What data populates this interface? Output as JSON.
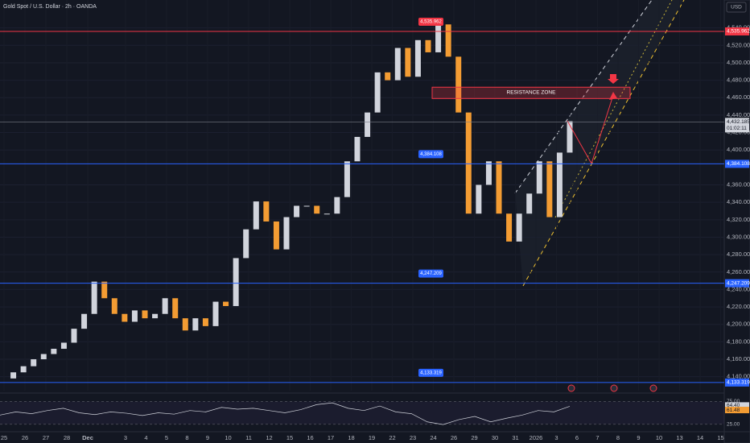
{
  "chart_data": {
    "type": "candlestick",
    "title": "Gold Spot / U.S. Dollar · 2h · OANDA",
    "currency": "USD",
    "annotation": "RESISTANCE ZONE",
    "color_up": "#d1d4dc",
    "color_down": "#f39c33",
    "closes": [
      4138,
      4145,
      4152,
      4160,
      4166,
      4172,
      4179,
      4195,
      4212,
      4249,
      4230,
      4212,
      4203,
      4216,
      4207,
      4212,
      4230,
      4207,
      4193,
      4207,
      4198,
      4226,
      4221,
      4276,
      4309,
      4341,
      4318,
      4286,
      4323,
      4336,
      4336,
      4327,
      4327,
      4346,
      4387,
      4415,
      4443,
      4489,
      4480,
      4517,
      4484,
      4526,
      4512,
      4544,
      4507,
      4443,
      4327,
      4360,
      4387,
      4327,
      4295,
      4327,
      4350,
      4387,
      4323,
      4397,
      4433
    ],
    "ylim": [
      4124,
      4572
    ],
    "yticks": [
      {
        "value": 4140,
        "label": "4,140.000"
      },
      {
        "value": 4160,
        "label": "4,160.000"
      },
      {
        "value": 4180,
        "label": "4,180.000"
      },
      {
        "value": 4200,
        "label": "4,200.000"
      },
      {
        "value": 4220,
        "label": "4,220.000"
      },
      {
        "value": 4240,
        "label": "4,240.000"
      },
      {
        "value": 4260,
        "label": "4,260.000"
      },
      {
        "value": 4280,
        "label": "4,280.000"
      },
      {
        "value": 4300,
        "label": "4,300.000"
      },
      {
        "value": 4320,
        "label": "4,320.000"
      },
      {
        "value": 4340,
        "label": "4,340.000"
      },
      {
        "value": 4360,
        "label": "4,360.000"
      },
      {
        "value": 4400,
        "label": "4,400.000"
      },
      {
        "value": 4420,
        "label": "4,420.000"
      },
      {
        "value": 4440,
        "label": "4,440.000"
      },
      {
        "value": 4460,
        "label": "4,460.000"
      },
      {
        "value": 4480,
        "label": "4,480.000"
      },
      {
        "value": 4500,
        "label": "4,500.000"
      },
      {
        "value": 4520,
        "label": "4,520.000"
      },
      {
        "value": 4540,
        "label": "4,540.000"
      }
    ],
    "levels": [
      {
        "value": 4535.962,
        "label": "4,535.962",
        "color": "#f23645"
      },
      {
        "value": 4384.108,
        "label": "4,384.108",
        "color": "#2962ff"
      },
      {
        "value": 4247.209,
        "label": "4,247.209",
        "color": "#2962ff"
      },
      {
        "value": 4133.319,
        "label": "4,133.319",
        "color": "#2962ff"
      }
    ],
    "current": {
      "value": 4432.185,
      "label": "4,432.185",
      "countdown": "01:02:11"
    },
    "resistance_zone": [
      4459,
      4472
    ],
    "time_labels": [
      "25",
      "26",
      "27",
      "28",
      "Dec",
      "3",
      "4",
      "5",
      "8",
      "9",
      "10",
      "11",
      "12",
      "15",
      "16",
      "17",
      "18",
      "19",
      "22",
      "23",
      "24",
      "26",
      "29",
      "30",
      "31",
      "2026",
      "3",
      "6",
      "7",
      "8",
      "9",
      "10",
      "13",
      "14",
      "15"
    ],
    "rsi": {
      "ylim": [
        10,
        90
      ],
      "yticks": [
        {
          "value": 75,
          "label": "75.00"
        },
        {
          "value": 25,
          "label": "25.00"
        }
      ],
      "values": [
        45,
        52,
        48,
        55,
        60,
        50,
        46,
        52,
        49,
        44,
        50,
        47,
        55,
        52,
        62,
        58,
        60,
        55,
        50,
        57,
        68,
        72,
        60,
        55,
        65,
        52,
        48,
        30,
        24,
        35,
        42,
        30,
        38,
        45,
        55,
        52,
        64.4
      ],
      "readouts": [
        {
          "value": 64.4,
          "label": "64.40"
        },
        {
          "value": 61.48,
          "label": "61.48"
        }
      ]
    }
  }
}
